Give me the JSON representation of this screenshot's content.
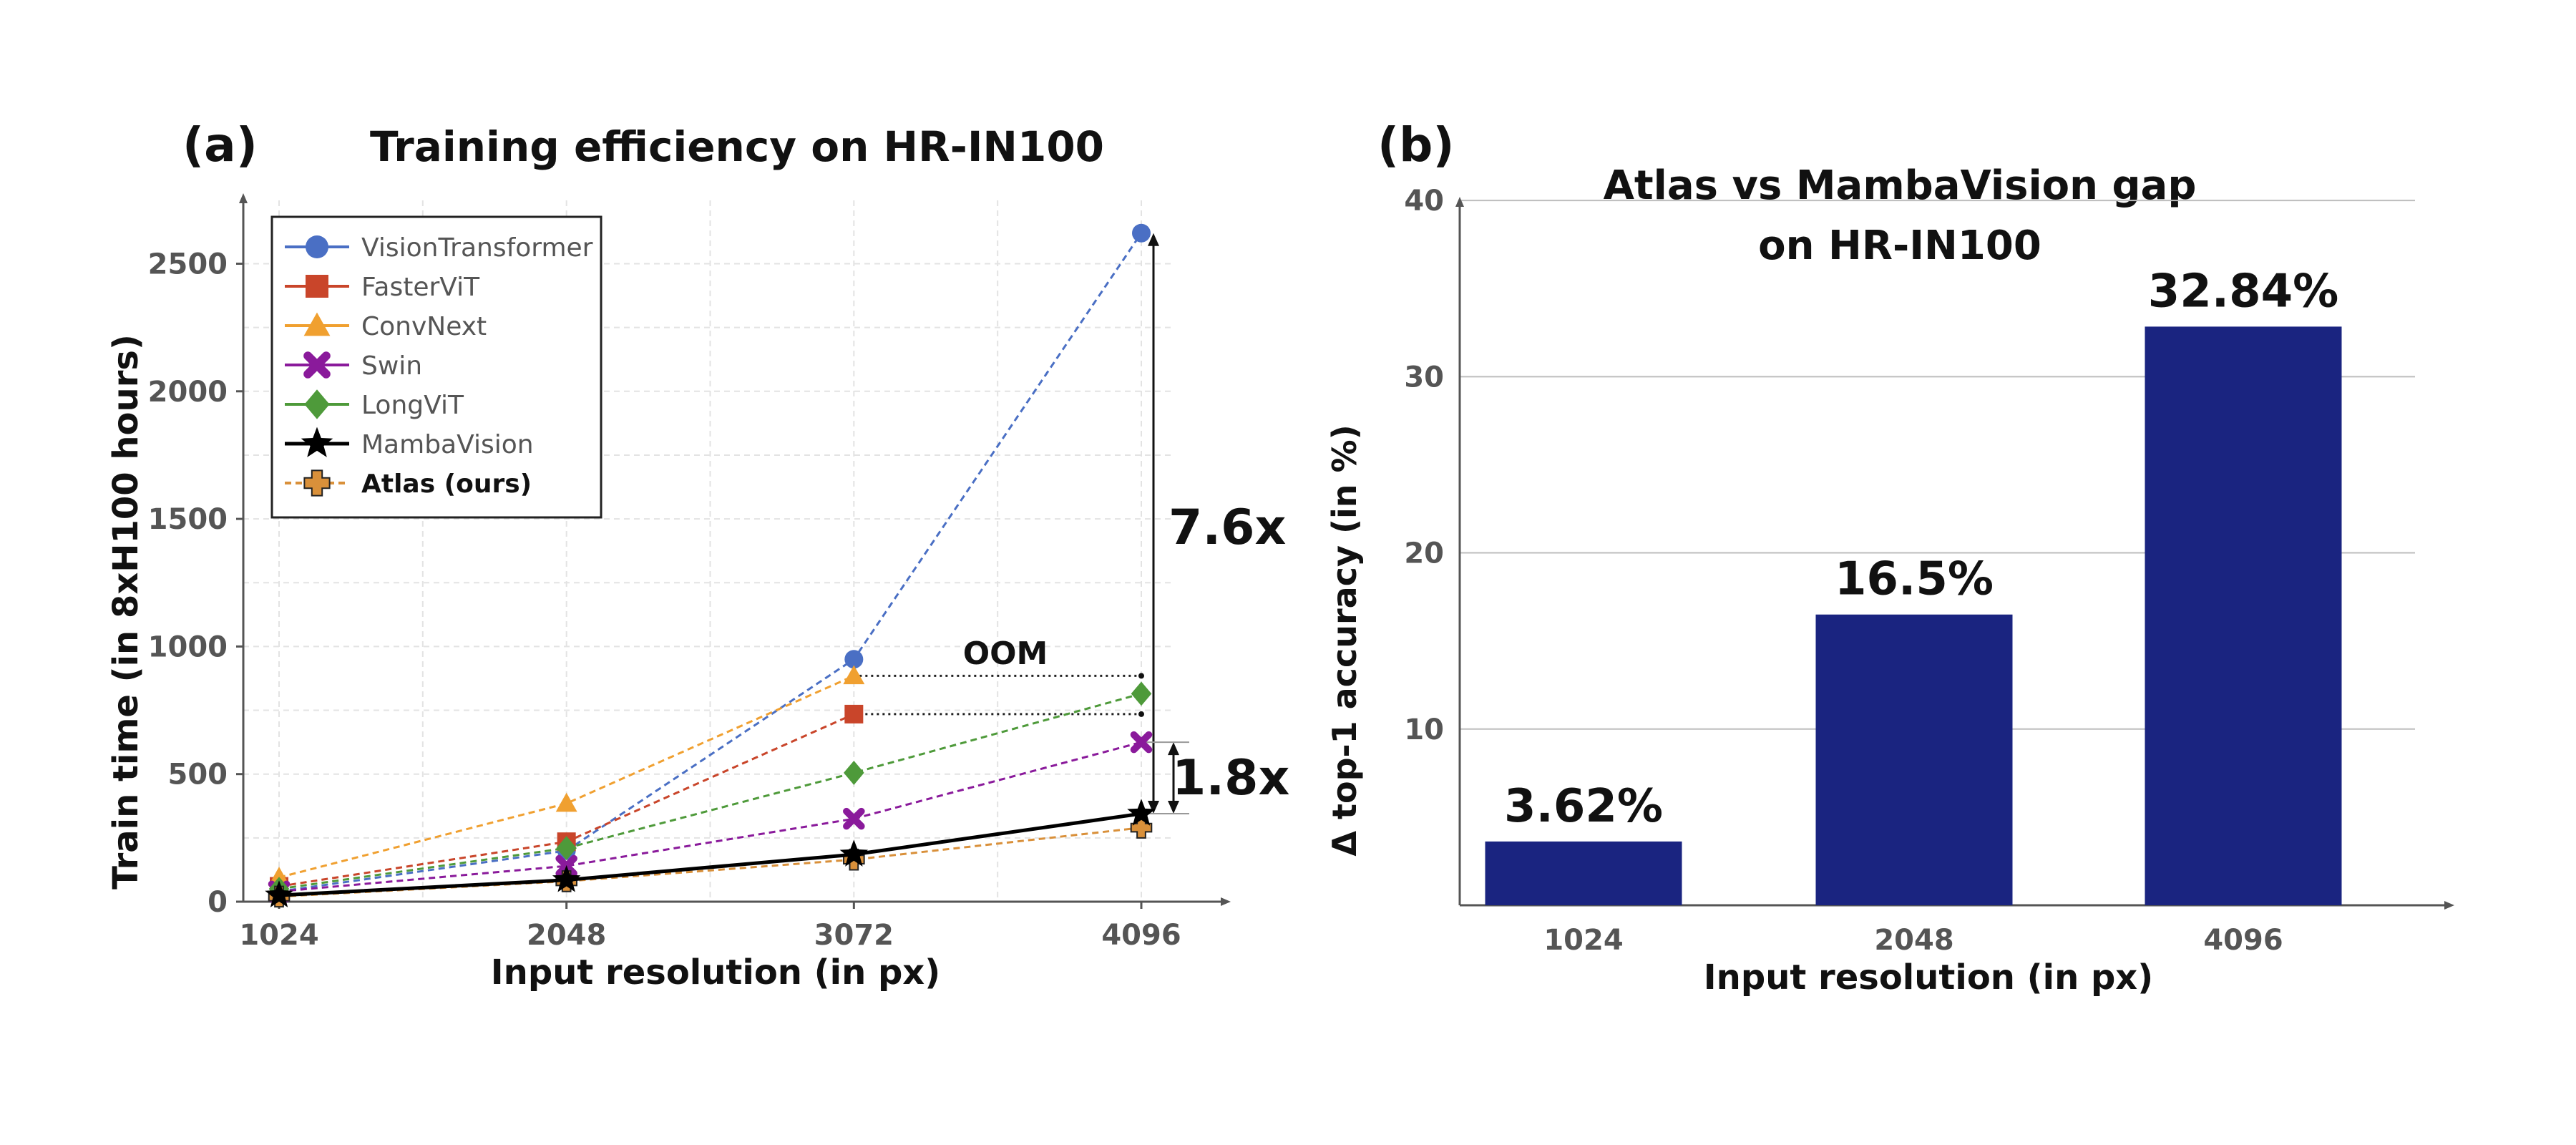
{
  "chart_data": [
    {
      "panel": "(a)",
      "type": "line",
      "title": "Training efficiency on HR-IN100",
      "xlabel": "Input resolution (in px)",
      "ylabel": "Train time (in 8xH100 hours)",
      "x": [
        1024,
        2048,
        3072,
        4096
      ],
      "xticks": [
        "1024",
        "2048",
        "3072",
        "4096"
      ],
      "yticks": [
        0,
        500,
        1000,
        1500,
        2000,
        2500
      ],
      "ylim": [
        0,
        2650
      ],
      "grid": true,
      "legend_position": "top-left",
      "series": [
        {
          "name": "VisionTransformer",
          "color": "#4a6fc4",
          "marker": "circle",
          "style": "dashed",
          "values": [
            40,
            200,
            950,
            2620
          ]
        },
        {
          "name": "FasterViT",
          "color": "#c9452a",
          "marker": "square",
          "style": "dashed",
          "values": [
            60,
            235,
            735,
            null
          ]
        },
        {
          "name": "ConvNext",
          "color": "#f0a030",
          "marker": "triangle",
          "style": "dashed",
          "values": [
            95,
            385,
            885,
            null
          ]
        },
        {
          "name": "Swin",
          "color": "#8a1a9b",
          "marker": "x",
          "style": "dashed",
          "values": [
            40,
            140,
            325,
            625
          ]
        },
        {
          "name": "LongViT",
          "color": "#4e9a3a",
          "marker": "diamond",
          "style": "dashed",
          "values": [
            50,
            210,
            505,
            815
          ]
        },
        {
          "name": "MambaVision",
          "color": "#000000",
          "marker": "star",
          "style": "solid",
          "values": [
            25,
            85,
            185,
            345
          ]
        },
        {
          "name": "Atlas (ours)",
          "color": "#d9903a",
          "marker": "plus",
          "style": "dashed",
          "bold": true,
          "values": [
            20,
            80,
            165,
            290
          ]
        }
      ],
      "annotations": {
        "oom": "OOM",
        "ratio_top": "7.6x",
        "ratio_bottom": "1.8x"
      }
    },
    {
      "panel": "(b)",
      "type": "bar",
      "title": [
        "Atlas vs MambaVision gap",
        "on HR-IN100"
      ],
      "xlabel": "Input resolution (in px)",
      "ylabel": "Δ top-1 accuracy (in %)",
      "categories": [
        "1024",
        "2048",
        "4096"
      ],
      "values": [
        3.62,
        16.5,
        32.84
      ],
      "value_labels": [
        "3.62%",
        "16.5%",
        "32.84%"
      ],
      "yticks": [
        10,
        20,
        30,
        40
      ],
      "ylim": [
        0,
        45
      ],
      "bar_color": "#1a2480",
      "grid": true
    }
  ]
}
